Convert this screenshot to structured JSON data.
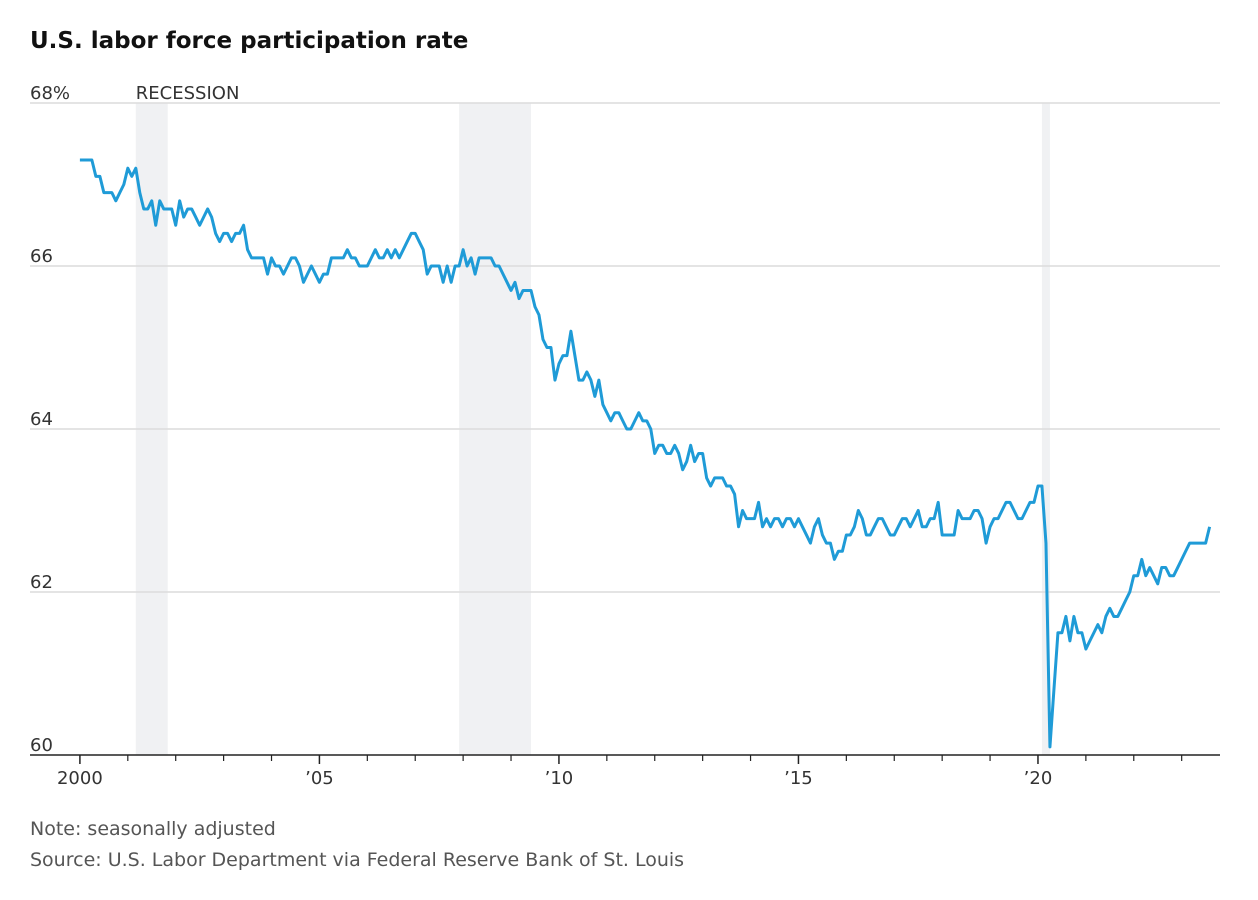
{
  "chart_data": {
    "type": "line",
    "title": "U.S. labor force participation rate",
    "annotation": "RECESSION",
    "note": "Note: seasonally adjusted",
    "source": "Source: U.S. Labor Department via Federal Reserve Bank of St. Louis",
    "color": "#1f9bd7",
    "recessions": [
      [
        2001.167,
        2001.833
      ],
      [
        2007.917,
        2009.417
      ],
      [
        2020.083,
        2020.25
      ]
    ],
    "xlim": [
      1999,
      2023.8
    ],
    "ylim": [
      60,
      68
    ],
    "yticks": [
      60,
      62,
      64,
      66,
      {
        "value": 68,
        "label": "68%"
      }
    ],
    "xticks": [
      2000,
      {
        "value": 2005,
        "label": "’05"
      },
      {
        "value": 2010,
        "label": "’10"
      },
      {
        "value": 2015,
        "label": "’15"
      },
      {
        "value": 2020,
        "label": "’20"
      }
    ],
    "xminor_ticks": [
      2001,
      2002,
      2003,
      2004,
      2006,
      2007,
      2008,
      2009,
      2011,
      2012,
      2013,
      2014,
      2016,
      2017,
      2018,
      2019,
      2021,
      2022,
      2023
    ],
    "grid": true,
    "x": [
      2000,
      2000.083,
      2000.167,
      2000.25,
      2000.333,
      2000.417,
      2000.5,
      2000.583,
      2000.667,
      2000.75,
      2000.833,
      2000.917,
      2001,
      2001.083,
      2001.167,
      2001.25,
      2001.333,
      2001.417,
      2001.5,
      2001.583,
      2001.667,
      2001.75,
      2001.833,
      2001.917,
      2002,
      2002.083,
      2002.167,
      2002.25,
      2002.333,
      2002.417,
      2002.5,
      2002.583,
      2002.667,
      2002.75,
      2002.833,
      2002.917,
      2003,
      2003.083,
      2003.167,
      2003.25,
      2003.333,
      2003.417,
      2003.5,
      2003.583,
      2003.667,
      2003.75,
      2003.833,
      2003.917,
      2004,
      2004.083,
      2004.167,
      2004.25,
      2004.333,
      2004.417,
      2004.5,
      2004.583,
      2004.667,
      2004.75,
      2004.833,
      2004.917,
      2005,
      2005.083,
      2005.167,
      2005.25,
      2005.333,
      2005.417,
      2005.5,
      2005.583,
      2005.667,
      2005.75,
      2005.833,
      2005.917,
      2006,
      2006.083,
      2006.167,
      2006.25,
      2006.333,
      2006.417,
      2006.5,
      2006.583,
      2006.667,
      2006.75,
      2006.833,
      2006.917,
      2007,
      2007.083,
      2007.167,
      2007.25,
      2007.333,
      2007.417,
      2007.5,
      2007.583,
      2007.667,
      2007.75,
      2007.833,
      2007.917,
      2008,
      2008.083,
      2008.167,
      2008.25,
      2008.333,
      2008.417,
      2008.5,
      2008.583,
      2008.667,
      2008.75,
      2008.833,
      2008.917,
      2009,
      2009.083,
      2009.167,
      2009.25,
      2009.333,
      2009.417,
      2009.5,
      2009.583,
      2009.667,
      2009.75,
      2009.833,
      2009.917,
      2010,
      2010.083,
      2010.167,
      2010.25,
      2010.333,
      2010.417,
      2010.5,
      2010.583,
      2010.667,
      2010.75,
      2010.833,
      2010.917,
      2011,
      2011.083,
      2011.167,
      2011.25,
      2011.333,
      2011.417,
      2011.5,
      2011.583,
      2011.667,
      2011.75,
      2011.833,
      2011.917,
      2012,
      2012.083,
      2012.167,
      2012.25,
      2012.333,
      2012.417,
      2012.5,
      2012.583,
      2012.667,
      2012.75,
      2012.833,
      2012.917,
      2013,
      2013.083,
      2013.167,
      2013.25,
      2013.333,
      2013.417,
      2013.5,
      2013.583,
      2013.667,
      2013.75,
      2013.833,
      2013.917,
      2014,
      2014.083,
      2014.167,
      2014.25,
      2014.333,
      2014.417,
      2014.5,
      2014.583,
      2014.667,
      2014.75,
      2014.833,
      2014.917,
      2015,
      2015.083,
      2015.167,
      2015.25,
      2015.333,
      2015.417,
      2015.5,
      2015.583,
      2015.667,
      2015.75,
      2015.833,
      2015.917,
      2016,
      2016.083,
      2016.167,
      2016.25,
      2016.333,
      2016.417,
      2016.5,
      2016.583,
      2016.667,
      2016.75,
      2016.833,
      2016.917,
      2017,
      2017.083,
      2017.167,
      2017.25,
      2017.333,
      2017.417,
      2017.5,
      2017.583,
      2017.667,
      2017.75,
      2017.833,
      2017.917,
      2018,
      2018.083,
      2018.167,
      2018.25,
      2018.333,
      2018.417,
      2018.5,
      2018.583,
      2018.667,
      2018.75,
      2018.833,
      2018.917,
      2019,
      2019.083,
      2019.167,
      2019.25,
      2019.333,
      2019.417,
      2019.5,
      2019.583,
      2019.667,
      2019.75,
      2019.833,
      2019.917,
      2020,
      2020.083,
      2020.167,
      2020.25,
      2020.333,
      2020.417,
      2020.5,
      2020.583,
      2020.667,
      2020.75,
      2020.833,
      2020.917,
      2021,
      2021.083,
      2021.167,
      2021.25,
      2021.333,
      2021.417,
      2021.5,
      2021.583,
      2021.667,
      2021.75,
      2021.833,
      2021.917,
      2022,
      2022.083,
      2022.167,
      2022.25,
      2022.333,
      2022.417,
      2022.5,
      2022.583,
      2022.667,
      2022.75,
      2022.833,
      2022.917,
      2023,
      2023.083,
      2023.167,
      2023.25,
      2023.333,
      2023.417,
      2023.5,
      2023.583
    ],
    "values": [
      67.3,
      67.3,
      67.3,
      67.3,
      67.1,
      67.1,
      66.9,
      66.9,
      66.9,
      66.8,
      66.9,
      67.0,
      67.2,
      67.1,
      67.2,
      66.9,
      66.7,
      66.7,
      66.8,
      66.5,
      66.8,
      66.7,
      66.7,
      66.7,
      66.5,
      66.8,
      66.6,
      66.7,
      66.7,
      66.6,
      66.5,
      66.6,
      66.7,
      66.6,
      66.4,
      66.3,
      66.4,
      66.4,
      66.3,
      66.4,
      66.4,
      66.5,
      66.2,
      66.1,
      66.1,
      66.1,
      66.1,
      65.9,
      66.1,
      66.0,
      66.0,
      65.9,
      66.0,
      66.1,
      66.1,
      66.0,
      65.8,
      65.9,
      66.0,
      65.9,
      65.8,
      65.9,
      65.9,
      66.1,
      66.1,
      66.1,
      66.1,
      66.2,
      66.1,
      66.1,
      66.0,
      66.0,
      66.0,
      66.1,
      66.2,
      66.1,
      66.1,
      66.2,
      66.1,
      66.2,
      66.1,
      66.2,
      66.3,
      66.4,
      66.4,
      66.3,
      66.2,
      65.9,
      66.0,
      66.0,
      66.0,
      65.8,
      66.0,
      65.8,
      66.0,
      66.0,
      66.2,
      66.0,
      66.1,
      65.9,
      66.1,
      66.1,
      66.1,
      66.1,
      66.0,
      66.0,
      65.9,
      65.8,
      65.7,
      65.8,
      65.6,
      65.7,
      65.7,
      65.7,
      65.5,
      65.4,
      65.1,
      65.0,
      65.0,
      64.6,
      64.8,
      64.9,
      64.9,
      65.2,
      64.9,
      64.6,
      64.6,
      64.7,
      64.6,
      64.4,
      64.6,
      64.3,
      64.2,
      64.1,
      64.2,
      64.2,
      64.1,
      64.0,
      64.0,
      64.1,
      64.2,
      64.1,
      64.1,
      64.0,
      63.7,
      63.8,
      63.8,
      63.7,
      63.7,
      63.8,
      63.7,
      63.5,
      63.6,
      63.8,
      63.6,
      63.7,
      63.7,
      63.4,
      63.3,
      63.4,
      63.4,
      63.4,
      63.3,
      63.3,
      63.2,
      62.8,
      63.0,
      62.9,
      62.9,
      62.9,
      63.1,
      62.8,
      62.9,
      62.8,
      62.9,
      62.9,
      62.8,
      62.9,
      62.9,
      62.8,
      62.9,
      62.8,
      62.7,
      62.6,
      62.8,
      62.9,
      62.7,
      62.6,
      62.6,
      62.4,
      62.5,
      62.5,
      62.7,
      62.7,
      62.8,
      63.0,
      62.9,
      62.7,
      62.7,
      62.8,
      62.9,
      62.9,
      62.8,
      62.7,
      62.7,
      62.8,
      62.9,
      62.9,
      62.8,
      62.9,
      63.0,
      62.8,
      62.8,
      62.9,
      62.9,
      63.1,
      62.7,
      62.7,
      62.7,
      62.7,
      63.0,
      62.9,
      62.9,
      62.9,
      63.0,
      63.0,
      62.9,
      62.6,
      62.8,
      62.9,
      62.9,
      63.0,
      63.1,
      63.1,
      63.0,
      62.9,
      62.9,
      63.0,
      63.1,
      63.1,
      63.3,
      63.3,
      62.6,
      60.1,
      60.8,
      61.5,
      61.5,
      61.7,
      61.4,
      61.7,
      61.5,
      61.5,
      61.3,
      61.4,
      61.5,
      61.6,
      61.5,
      61.7,
      61.8,
      61.7,
      61.7,
      61.8,
      61.9,
      62.0,
      62.2,
      62.2,
      62.4,
      62.2,
      62.3,
      62.2,
      62.1,
      62.3,
      62.3,
      62.2,
      62.2,
      62.3,
      62.4,
      62.5,
      62.6,
      62.6,
      62.6,
      62.6,
      62.6,
      62.8
    ]
  }
}
